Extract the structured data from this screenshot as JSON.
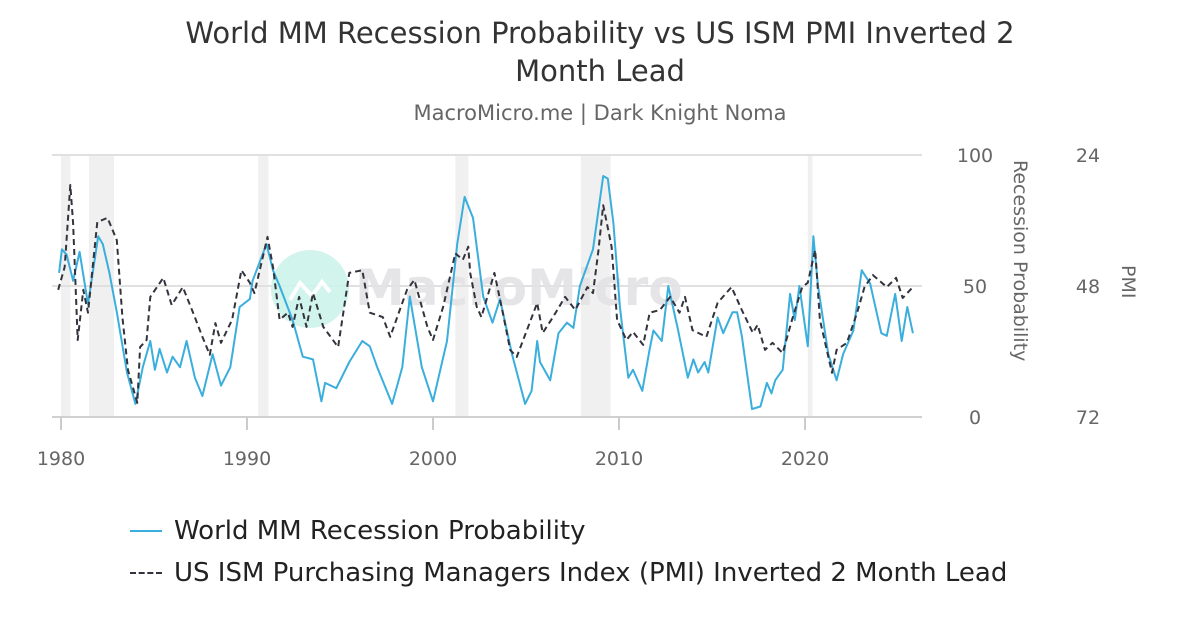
{
  "title_lines": [
    "World MM Recession Probability vs US ISM PMI Inverted 2",
    "Month Lead"
  ],
  "subtitle": "MacroMicro.me | Dark Knight Noma",
  "watermark": "MacroMicro",
  "chart_data": {
    "type": "line",
    "title": "World MM Recession Probability vs US ISM PMI Inverted 2 Month Lead",
    "xlim": [
      1979.5,
      2026.3
    ],
    "x_ticks": [
      "1980",
      "1990",
      "2000",
      "2010",
      "2020"
    ],
    "y_left": {
      "label": "Recession Probability",
      "range": [
        0,
        100
      ],
      "ticks": [
        "0",
        "50",
        "100"
      ]
    },
    "y_right": {
      "label": "PMI",
      "range": [
        72,
        24
      ],
      "inverted": true,
      "ticks": [
        "24",
        "48",
        "72"
      ]
    },
    "grid": "horizontal",
    "legend_position": "bottom",
    "recession_bands": [
      [
        1980.0,
        1980.5
      ],
      [
        1981.5,
        1982.85
      ],
      [
        1990.6,
        1991.15
      ],
      [
        2001.2,
        2001.9
      ],
      [
        2007.95,
        2009.55
      ],
      [
        2020.15,
        2020.4
      ]
    ],
    "series": [
      {
        "name": "World MM Recession Probability",
        "axis": "left",
        "color": "#3aaedc",
        "style": "solid",
        "x": [
          1979.9,
          1980.05,
          1980.3,
          1980.65,
          1981.0,
          1981.45,
          1982.0,
          1982.25,
          1982.6,
          1983.0,
          1983.55,
          1984.0,
          1984.4,
          1984.8,
          1985.05,
          1985.3,
          1985.7,
          1986.0,
          1986.4,
          1986.75,
          1987.2,
          1987.6,
          1988.15,
          1988.6,
          1989.1,
          1989.6,
          1990.15,
          1990.3,
          1991.05,
          1991.4,
          1991.75,
          1992.45,
          1993.0,
          1993.55,
          1994.0,
          1994.2,
          1994.8,
          1995.5,
          1996.2,
          1996.6,
          1997.0,
          1997.8,
          1998.35,
          1998.75,
          1999.4,
          2000.0,
          2000.75,
          2001.3,
          2001.7,
          2002.15,
          2002.7,
          2003.2,
          2003.6,
          2004.25,
          2004.95,
          2005.3,
          2005.6,
          2005.75,
          2006.3,
          2006.75,
          2007.2,
          2007.55,
          2007.9,
          2008.6,
          2009.15,
          2009.4,
          2009.7,
          2010.05,
          2010.5,
          2010.75,
          2011.25,
          2011.65,
          2011.85,
          2012.3,
          2012.65,
          2013.15,
          2013.7,
          2014.0,
          2014.25,
          2014.6,
          2014.8,
          2015.3,
          2015.6,
          2016.1,
          2016.35,
          2016.6,
          2017.15,
          2017.6,
          2017.95,
          2018.2,
          2018.4,
          2018.8,
          2019.2,
          2019.45,
          2019.7,
          2020.15,
          2020.45,
          2020.7,
          2021.25,
          2021.7,
          2022.05,
          2022.6,
          2023.05,
          2023.5,
          2024.1,
          2024.4,
          2024.85,
          2025.2,
          2025.5,
          2025.8
        ],
        "y": [
          55,
          64,
          62,
          52,
          63,
          43,
          69,
          66,
          55,
          40,
          17,
          5,
          19,
          29,
          18,
          26,
          17,
          23,
          19,
          29,
          15,
          8,
          24,
          12,
          19,
          42,
          45,
          52,
          66,
          56,
          50,
          37,
          23,
          22,
          6,
          13,
          11,
          21,
          29,
          27,
          19,
          5,
          19,
          46,
          19,
          6,
          29,
          66,
          84,
          76,
          46,
          36,
          45,
          24,
          5,
          10,
          29,
          21,
          14,
          32,
          36,
          34,
          50,
          64,
          92,
          91,
          74,
          42,
          15,
          18,
          10,
          26,
          33,
          29,
          50,
          34,
          15,
          22,
          17,
          21,
          17,
          38,
          32,
          40,
          40,
          31,
          3,
          4,
          13,
          9,
          14,
          18,
          47,
          37,
          50,
          27,
          69,
          50,
          24,
          14,
          24,
          33,
          56,
          51,
          32,
          31,
          47,
          29,
          42,
          32
        ]
      },
      {
        "name": "US ISM Purchasing Managers Index (PMI) Inverted 2 Month Lead",
        "axis": "right",
        "color": "#33333d",
        "style": "dashed",
        "x": [
          1979.85,
          1980.2,
          1980.5,
          1980.65,
          1980.9,
          1981.2,
          1981.45,
          1981.95,
          1982.5,
          1983.0,
          1983.3,
          1983.6,
          1984.1,
          1984.25,
          1984.6,
          1984.8,
          1985.5,
          1985.95,
          1986.55,
          1987.1,
          1987.6,
          1988.0,
          1988.3,
          1988.6,
          1989.2,
          1989.7,
          1990.15,
          1990.4,
          1991.1,
          1991.4,
          1991.75,
          1992.2,
          1992.45,
          1992.8,
          1993.2,
          1993.55,
          1994.1,
          1994.9,
          1995.5,
          1996.2,
          1996.6,
          1997.3,
          1997.7,
          1998.6,
          1999.0,
          1999.7,
          2000.0,
          2000.55,
          2001.2,
          2001.6,
          2001.9,
          2002.0,
          2002.35,
          2002.6,
          2003.3,
          2003.75,
          2004.15,
          2004.5,
          2005.05,
          2005.6,
          2005.9,
          2006.45,
          2007.1,
          2007.65,
          2008.3,
          2008.6,
          2008.9,
          2009.15,
          2009.6,
          2009.9,
          2010.4,
          2010.75,
          2011.3,
          2011.65,
          2012.2,
          2012.75,
          2013.25,
          2013.55,
          2013.95,
          2014.7,
          2015.3,
          2016.05,
          2016.6,
          2017.2,
          2017.45,
          2017.85,
          2018.25,
          2018.8,
          2019.3,
          2019.85,
          2020.15,
          2020.55,
          2020.8,
          2021.45,
          2021.7,
          2022.25,
          2022.8,
          2023.2,
          2023.65,
          2024.4,
          2024.9,
          2025.25,
          2025.8
        ],
        "y": [
          48.7,
          44.5,
          29.5,
          36.5,
          57.9,
          48.7,
          52.9,
          36.3,
          35.5,
          39.6,
          53.7,
          63.4,
          69.4,
          59.2,
          57.9,
          50,
          46.5,
          51.5,
          48.2,
          52.9,
          57.3,
          60.6,
          54.8,
          58.4,
          54.2,
          45.1,
          47.4,
          49.3,
          39,
          44.5,
          54.2,
          52.9,
          55.5,
          50,
          55.5,
          49.3,
          55.5,
          59.2,
          45.6,
          45.1,
          52.9,
          53.7,
          57.3,
          48.7,
          46.9,
          55.5,
          57.9,
          51.8,
          42,
          43.2,
          40.8,
          45.6,
          51.8,
          53.7,
          45.6,
          52.9,
          59.7,
          61,
          56.1,
          51.1,
          56.6,
          53.7,
          50,
          52.4,
          48.2,
          49.3,
          41.4,
          33.2,
          40.8,
          54.2,
          57.9,
          56.4,
          58.8,
          52.9,
          52.4,
          50,
          52.9,
          50,
          56.1,
          57.3,
          51.1,
          48.2,
          52.4,
          56.6,
          55.1,
          59.7,
          58.4,
          60.3,
          54.2,
          48.2,
          47.4,
          41.4,
          54.2,
          63.9,
          59.7,
          58.4,
          52.9,
          48.2,
          46,
          48.2,
          46.5,
          50.2,
          48.2
        ]
      }
    ]
  }
}
